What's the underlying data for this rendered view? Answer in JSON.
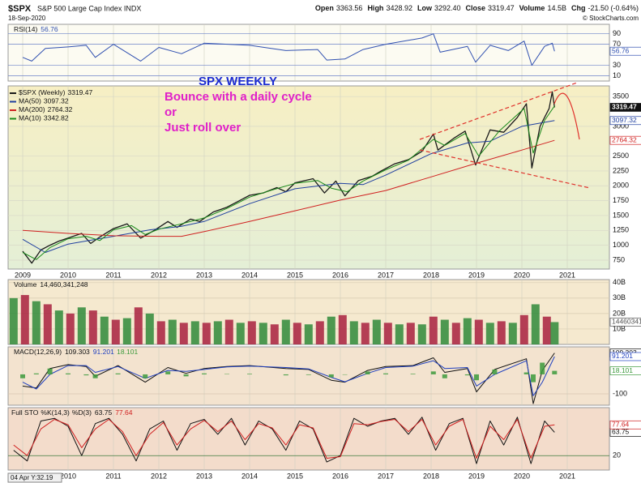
{
  "header": {
    "symbol": "$SPX",
    "name": "S&P 500 Large Cap Index INDX",
    "date": "18-Sep-2020",
    "stats": [
      {
        "label": "Open",
        "value": "3363.56"
      },
      {
        "label": "High",
        "value": "3428.92"
      },
      {
        "label": "Low",
        "value": "3292.40"
      },
      {
        "label": "Close",
        "value": "3319.47"
      },
      {
        "label": "Volume",
        "value": "14.5B"
      },
      {
        "label": "Chg",
        "value": "-21.50 (-0.64%)"
      }
    ],
    "copyright": "© StockCharts.com",
    "cursor_label": "04 Apr Y:32.19"
  },
  "annotations": {
    "heading": "SPX WEEKLY",
    "lines": [
      "Bounce with a daily cycle",
      "or",
      "Just roll over"
    ]
  },
  "chart_data": [
    {
      "type": "line",
      "legend": "inline",
      "ylim": [
        0,
        108
      ],
      "yticks": [
        90,
        70,
        30,
        10
      ],
      "grid": true,
      "grid_color": "#6c82c8",
      "x": [
        2009.0,
        2009.2,
        2009.5,
        2010.0,
        2010.4,
        2010.6,
        2011.0,
        2011.6,
        2012.0,
        2012.5,
        2013.0,
        2014.0,
        2014.8,
        2015.5,
        2015.7,
        2016.1,
        2016.5,
        2017.0,
        2017.8,
        2018.05,
        2018.2,
        2018.8,
        2018.98,
        2019.3,
        2019.7,
        2020.05,
        2020.22,
        2020.5,
        2020.67,
        2020.72
      ],
      "series": [
        {
          "name": "RSI(14)",
          "color": "#3050b0",
          "tag": true,
          "values": [
            45,
            38,
            62,
            65,
            68,
            45,
            70,
            38,
            64,
            52,
            72,
            68,
            58,
            60,
            40,
            42,
            60,
            70,
            82,
            90,
            55,
            66,
            36,
            68,
            58,
            76,
            30,
            66,
            72,
            56.76
          ]
        }
      ]
    },
    {
      "type": "line",
      "legend": "rows",
      "ylim": [
        600,
        3680
      ],
      "yticks": [
        3500,
        3000,
        2500,
        2250,
        2000,
        1750,
        1500,
        1250,
        1000,
        750
      ],
      "grid": true,
      "grid_color": "#d8d8c8",
      "xticks": [
        2009,
        2010,
        2011,
        2012,
        2013,
        2014,
        2015,
        2016,
        2017,
        2018,
        2019,
        2020,
        2021
      ],
      "series": [
        {
          "name": "$SPX (Weekly)",
          "color": "#1a1a1a",
          "tag": true,
          "tag_fill": "#111111",
          "width": 1.3,
          "x": [
            2009.0,
            2009.2,
            2009.4,
            2009.6,
            2009.8,
            2010.0,
            2010.3,
            2010.5,
            2010.7,
            2011.0,
            2011.3,
            2011.6,
            2011.9,
            2012.2,
            2012.4,
            2012.7,
            2012.9,
            2013.2,
            2013.5,
            2013.8,
            2014.0,
            2014.3,
            2014.6,
            2014.8,
            2015.0,
            2015.4,
            2015.65,
            2015.9,
            2016.1,
            2016.4,
            2016.7,
            2016.9,
            2017.2,
            2017.5,
            2017.8,
            2018.05,
            2018.15,
            2018.5,
            2018.75,
            2018.98,
            2019.3,
            2019.6,
            2019.9,
            2020.1,
            2020.22,
            2020.4,
            2020.6,
            2020.67,
            2020.72
          ],
          "values": [
            900,
            700,
            920,
            1000,
            1070,
            1120,
            1200,
            1030,
            1140,
            1280,
            1360,
            1120,
            1250,
            1400,
            1300,
            1440,
            1400,
            1560,
            1640,
            1760,
            1840,
            1880,
            1970,
            1900,
            2050,
            2120,
            1880,
            2080,
            1830,
            2090,
            2160,
            2250,
            2370,
            2440,
            2580,
            2870,
            2600,
            2800,
            2920,
            2350,
            2940,
            2900,
            3150,
            3380,
            2300,
            3000,
            3300,
            3580,
            3319.47
          ]
        },
        {
          "name": "MA(50)",
          "color": "#1f3f9f",
          "tag": true,
          "x": [
            2009.0,
            2009.5,
            2010.0,
            2011.0,
            2011.8,
            2012.5,
            2013.0,
            2014.0,
            2015.0,
            2016.0,
            2016.5,
            2017.0,
            2018.0,
            2018.8,
            2019.3,
            2020.0,
            2020.72
          ],
          "values": [
            1100,
            880,
            1020,
            1150,
            1260,
            1320,
            1400,
            1700,
            1950,
            2040,
            2020,
            2180,
            2540,
            2720,
            2750,
            3000,
            3097.32
          ]
        },
        {
          "name": "MA(200)",
          "color": "#d02020",
          "tag": true,
          "x": [
            2009.0,
            2010.0,
            2011.0,
            2012.0,
            2012.5,
            2013.0,
            2014.0,
            2015.0,
            2016.0,
            2017.0,
            2018.0,
            2019.0,
            2020.0,
            2020.72
          ],
          "values": [
            1250,
            1200,
            1160,
            1150,
            1150,
            1230,
            1400,
            1580,
            1760,
            1920,
            2150,
            2380,
            2600,
            2764.32
          ]
        },
        {
          "name": "MA(10)",
          "color": "#1a8a1a",
          "x": [
            2009.0,
            2009.3,
            2009.6,
            2010.0,
            2010.4,
            2010.7,
            2011.0,
            2011.4,
            2011.7,
            2012.0,
            2012.5,
            2013.0,
            2013.5,
            2014.0,
            2014.5,
            2015.0,
            2015.5,
            2015.8,
            2016.15,
            2016.5,
            2017.0,
            2017.5,
            2018.05,
            2018.3,
            2018.75,
            2019.05,
            2019.5,
            2020.05,
            2020.25,
            2020.5,
            2020.72
          ],
          "values": [
            880,
            760,
            960,
            1110,
            1150,
            1080,
            1260,
            1330,
            1180,
            1270,
            1360,
            1460,
            1620,
            1810,
            1930,
            2040,
            2090,
            1960,
            1900,
            2080,
            2270,
            2430,
            2780,
            2680,
            2880,
            2500,
            2920,
            3300,
            2550,
            3100,
            3342.82
          ]
        }
      ]
    },
    {
      "type": "bar",
      "legend": "inline",
      "ylim": [
        0,
        42000000000
      ],
      "yticks": [
        {
          "value": 40000000000,
          "label": "40B"
        },
        {
          "value": 30000000000,
          "label": "30B"
        },
        {
          "value": 20000000000,
          "label": "20B"
        },
        {
          "value": 10000000000,
          "label": "10B"
        }
      ],
      "grid": true,
      "grid_color": "#d8ccb0",
      "x": [
        2008.8,
        2009.05,
        2009.3,
        2009.55,
        2009.8,
        2010.05,
        2010.3,
        2010.55,
        2010.8,
        2011.05,
        2011.3,
        2011.55,
        2011.8,
        2012.05,
        2012.3,
        2012.55,
        2012.8,
        2013.05,
        2013.3,
        2013.55,
        2013.8,
        2014.05,
        2014.3,
        2014.55,
        2014.8,
        2015.05,
        2015.3,
        2015.55,
        2015.8,
        2016.05,
        2016.3,
        2016.55,
        2016.8,
        2017.05,
        2017.3,
        2017.55,
        2017.8,
        2018.05,
        2018.3,
        2018.55,
        2018.8,
        2019.05,
        2019.3,
        2019.55,
        2019.8,
        2020.05,
        2020.3,
        2020.55,
        2020.72
      ],
      "series": [
        {
          "name": "Volume",
          "legend_value": "14,460,341,248",
          "color": "#555555",
          "colors": [
            "#2f8a3a",
            "#a8203e"
          ],
          "tag": true,
          "values": [
            30000000000.0,
            32000000000.0,
            28000000000.0,
            26000000000.0,
            22000000000.0,
            20000000000.0,
            24000000000.0,
            22000000000.0,
            18000000000.0,
            16000000000.0,
            17000000000.0,
            24000000000.0,
            20000000000.0,
            15000000000.0,
            16000000000.0,
            14000000000.0,
            15000000000.0,
            14000000000.0,
            15000000000.0,
            16000000000.0,
            14000000000.0,
            15000000000.0,
            14000000000.0,
            13000000000.0,
            16000000000.0,
            14000000000.0,
            13000000000.0,
            15000000000.0,
            18000000000.0,
            19000000000.0,
            15000000000.0,
            14000000000.0,
            16000000000.0,
            14000000000.0,
            13000000000.0,
            14000000000.0,
            13000000000.0,
            18000000000.0,
            16000000000.0,
            14000000000.0,
            17000000000.0,
            16000000000.0,
            14000000000.0,
            15000000000.0,
            14000000000.0,
            19000000000.0,
            26000000000.0,
            18000000000.0,
            14460341248
          ]
        }
      ]
    },
    {
      "type": "line",
      "legend": "inline",
      "ylim": [
        -158,
        141
      ],
      "yticks": [
        -100
      ],
      "grid": true,
      "grid_color": "#d8c4b0",
      "x": [
        2009.0,
        2009.3,
        2009.6,
        2010.0,
        2010.4,
        2010.6,
        2011.1,
        2011.7,
        2012.2,
        2012.6,
        2013.0,
        2013.5,
        2014.0,
        2014.8,
        2015.3,
        2015.8,
        2016.1,
        2016.6,
        2017.0,
        2017.6,
        2018.05,
        2018.3,
        2018.8,
        2019.0,
        2019.4,
        2020.1,
        2020.25,
        2020.45,
        2020.72
      ],
      "series": [
        {
          "name": "MACD(12,26,9)",
          "color": "#111111",
          "tag": true,
          "values": [
            -60,
            -70,
            30,
            50,
            40,
            -10,
            45,
            -40,
            35,
            5,
            30,
            40,
            45,
            30,
            25,
            -30,
            -40,
            20,
            40,
            45,
            85,
            10,
            30,
            -90,
            25,
            80,
            -150,
            20,
            109.303
          ]
        },
        {
          "color": "#2040c0",
          "tag": true,
          "values": [
            -40,
            -75,
            0,
            45,
            45,
            10,
            40,
            -20,
            20,
            15,
            25,
            38,
            42,
            35,
            28,
            -15,
            -38,
            5,
            35,
            42,
            70,
            30,
            35,
            -60,
            0,
            70,
            -110,
            -40,
            91.201
          ]
        },
        {
          "color": "#3c9a3c",
          "style": "bar",
          "tag": true,
          "values": [
            -20,
            5,
            30,
            5,
            -5,
            -20,
            5,
            -20,
            15,
            -10,
            5,
            2,
            3,
            -5,
            -3,
            -15,
            -2,
            15,
            5,
            3,
            15,
            -20,
            -5,
            -30,
            25,
            10,
            -40,
            60,
            18.101
          ]
        }
      ]
    },
    {
      "type": "line",
      "legend": "inline",
      "title": "Full STO",
      "ylim": [
        -7,
        110
      ],
      "yticks": [
        20
      ],
      "grid": true,
      "grid_color": "#3c7a3c",
      "xticks": [
        2010,
        2011,
        2012,
        2013,
        2014,
        2015,
        2016,
        2017,
        2018,
        2019,
        2020,
        2021
      ],
      "x": [
        2008.8,
        2009.1,
        2009.4,
        2009.7,
        2010.0,
        2010.3,
        2010.6,
        2010.9,
        2011.2,
        2011.5,
        2011.8,
        2012.1,
        2012.4,
        2012.7,
        2013.0,
        2013.3,
        2013.6,
        2013.9,
        2014.2,
        2014.5,
        2014.8,
        2015.1,
        2015.4,
        2015.7,
        2016.0,
        2016.3,
        2016.6,
        2016.9,
        2017.2,
        2017.5,
        2017.8,
        2018.1,
        2018.4,
        2018.7,
        2019.0,
        2019.3,
        2019.6,
        2019.9,
        2020.2,
        2020.5,
        2020.72
      ],
      "series": [
        {
          "name": "%K(14,3)",
          "color": "#111111",
          "tag": true,
          "values": [
            30,
            10,
            85,
            90,
            75,
            20,
            80,
            90,
            60,
            10,
            70,
            85,
            30,
            80,
            88,
            60,
            90,
            40,
            85,
            70,
            30,
            85,
            70,
            8,
            20,
            90,
            75,
            85,
            90,
            60,
            92,
            30,
            80,
            90,
            5,
            85,
            40,
            92,
            5,
            85,
            63.75
          ]
        },
        {
          "name": "%D(3)",
          "color": "#d02020",
          "tag": true,
          "values": [
            40,
            20,
            70,
            88,
            78,
            35,
            70,
            88,
            65,
            20,
            60,
            82,
            40,
            70,
            86,
            65,
            85,
            50,
            80,
            72,
            40,
            78,
            72,
            15,
            18,
            80,
            78,
            84,
            88,
            65,
            88,
            40,
            75,
            88,
            15,
            75,
            50,
            88,
            15,
            75,
            77.64
          ]
        }
      ]
    }
  ]
}
